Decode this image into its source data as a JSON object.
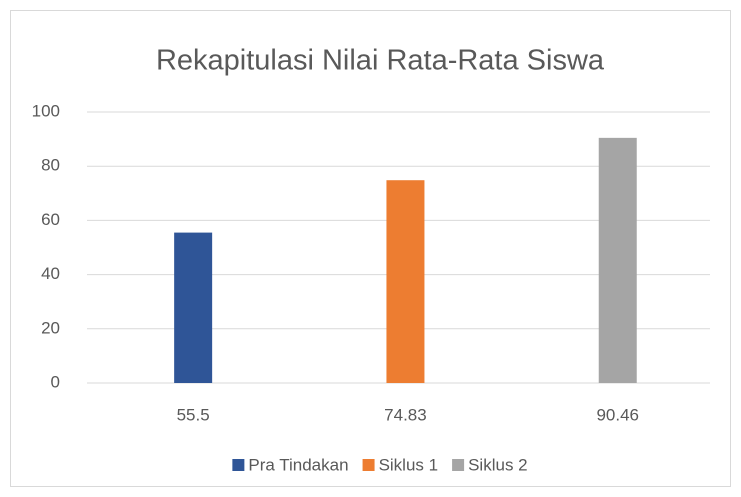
{
  "chart_data": {
    "type": "bar",
    "title": "Rekapitulasi Nilai Rata-Rata Siswa",
    "categories": [
      "55.5",
      "74.83",
      "90.46"
    ],
    "series": [
      {
        "name": "Pra Tindakan",
        "color": "#2f5597",
        "values": [
          55.5,
          null,
          null
        ]
      },
      {
        "name": "Siklus 1",
        "color": "#ed7d31",
        "values": [
          null,
          74.83,
          null
        ]
      },
      {
        "name": "Siklus 2",
        "color": "#a5a5a5",
        "values": [
          null,
          null,
          90.46
        ]
      }
    ],
    "ylim": [
      0,
      100
    ],
    "yticks": [
      0,
      20,
      40,
      60,
      80,
      100
    ],
    "grid": true,
    "legend": "bottom"
  }
}
